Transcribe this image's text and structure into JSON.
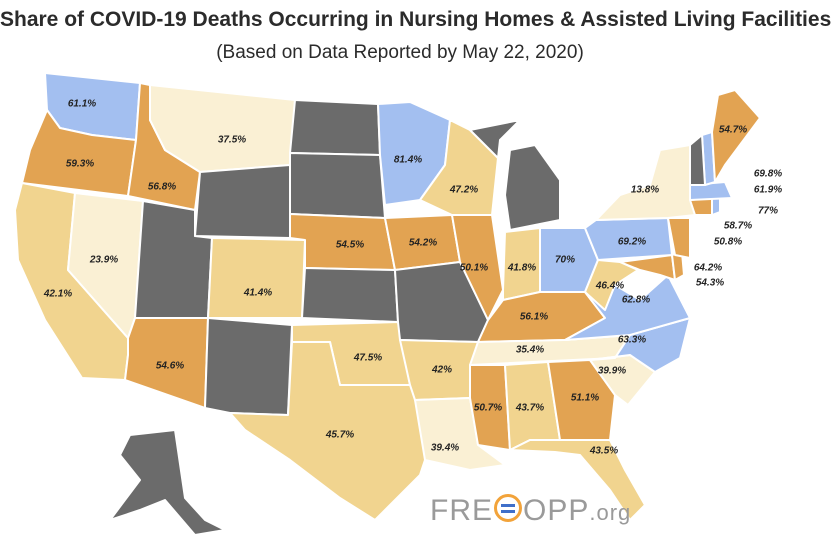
{
  "title": "Share of COVID-19 Deaths Occurring in Nursing Homes & Assisted Living Facilities",
  "subtitle": "(Based on Data Reported by May 22, 2020)",
  "logo": {
    "part1": "FRE",
    "part2": "OPP",
    "part3": ".org"
  },
  "colors": {
    "blue": "#a3bff0",
    "orange": "#e2a352",
    "tan": "#f1d48f",
    "cream": "#faf0d4",
    "gray": "#6b6b6b",
    "border": "#ffffff"
  },
  "map_data": {
    "type": "choropleth",
    "metric": "Share of COVID-19 deaths occurring in nursing homes & assisted living facilities",
    "states": [
      {
        "state": "Washington",
        "value": "61.1%",
        "bin": "blue"
      },
      {
        "state": "Oregon",
        "value": "59.3%",
        "bin": "orange"
      },
      {
        "state": "Idaho",
        "value": "56.8%",
        "bin": "orange"
      },
      {
        "state": "Montana",
        "value": "37.5%",
        "bin": "cream"
      },
      {
        "state": "California",
        "value": "42.1%",
        "bin": "tan"
      },
      {
        "state": "Nevada",
        "value": "23.9%",
        "bin": "cream"
      },
      {
        "state": "Utah",
        "value": null,
        "bin": "gray"
      },
      {
        "state": "Wyoming",
        "value": null,
        "bin": "gray"
      },
      {
        "state": "Colorado",
        "value": "41.4%",
        "bin": "tan"
      },
      {
        "state": "Arizona",
        "value": "54.6%",
        "bin": "orange"
      },
      {
        "state": "New Mexico",
        "value": null,
        "bin": "gray"
      },
      {
        "state": "North Dakota",
        "value": null,
        "bin": "gray"
      },
      {
        "state": "South Dakota",
        "value": null,
        "bin": "gray"
      },
      {
        "state": "Nebraska",
        "value": "54.5%",
        "bin": "orange"
      },
      {
        "state": "Kansas",
        "value": null,
        "bin": "gray"
      },
      {
        "state": "Oklahoma",
        "value": "47.5%",
        "bin": "tan"
      },
      {
        "state": "Texas",
        "value": "45.7%",
        "bin": "tan"
      },
      {
        "state": "Minnesota",
        "value": "81.4%",
        "bin": "blue"
      },
      {
        "state": "Iowa",
        "value": "54.2%",
        "bin": "orange"
      },
      {
        "state": "Missouri",
        "value": null,
        "bin": "gray"
      },
      {
        "state": "Arkansas",
        "value": "42%",
        "bin": "tan"
      },
      {
        "state": "Louisiana",
        "value": "39.4%",
        "bin": "cream"
      },
      {
        "state": "Wisconsin",
        "value": "47.2%",
        "bin": "tan"
      },
      {
        "state": "Illinois",
        "value": "50.1%",
        "bin": "orange"
      },
      {
        "state": "Michigan",
        "value": null,
        "bin": "gray"
      },
      {
        "state": "Indiana",
        "value": "41.8%",
        "bin": "tan"
      },
      {
        "state": "Ohio",
        "value": "70%",
        "bin": "blue"
      },
      {
        "state": "Kentucky",
        "value": "56.1%",
        "bin": "orange"
      },
      {
        "state": "Tennessee",
        "value": "35.4%",
        "bin": "cream"
      },
      {
        "state": "Mississippi",
        "value": "50.7%",
        "bin": "orange"
      },
      {
        "state": "Alabama",
        "value": "43.7%",
        "bin": "tan"
      },
      {
        "state": "Georgia",
        "value": "51.1%",
        "bin": "orange"
      },
      {
        "state": "Florida",
        "value": "43.5%",
        "bin": "tan"
      },
      {
        "state": "South Carolina",
        "value": "39.9%",
        "bin": "cream"
      },
      {
        "state": "North Carolina",
        "value": "63.3%",
        "bin": "blue"
      },
      {
        "state": "Virginia",
        "value": "62.8%",
        "bin": "blue"
      },
      {
        "state": "West Virginia",
        "value": "46.4%",
        "bin": "tan"
      },
      {
        "state": "Maryland",
        "value": "54.3%",
        "bin": "orange"
      },
      {
        "state": "Delaware",
        "value": "64.2%",
        "bin": "orange"
      },
      {
        "state": "Pennsylvania",
        "value": "69.2%",
        "bin": "blue"
      },
      {
        "state": "New Jersey",
        "value": "50.8%",
        "bin": "orange"
      },
      {
        "state": "New York",
        "value": "13.8%",
        "bin": "cream"
      },
      {
        "state": "Connecticut",
        "value": "58.7%",
        "bin": "orange"
      },
      {
        "state": "Rhode Island",
        "value": "77%",
        "bin": "blue"
      },
      {
        "state": "Massachusetts",
        "value": "61.9%",
        "bin": "blue"
      },
      {
        "state": "New Hampshire",
        "value": "69.8%",
        "bin": "blue"
      },
      {
        "state": "Vermont",
        "value": null,
        "bin": "gray"
      },
      {
        "state": "Maine",
        "value": "54.7%",
        "bin": "orange"
      },
      {
        "state": "Alaska",
        "value": null,
        "bin": "gray"
      }
    ]
  }
}
